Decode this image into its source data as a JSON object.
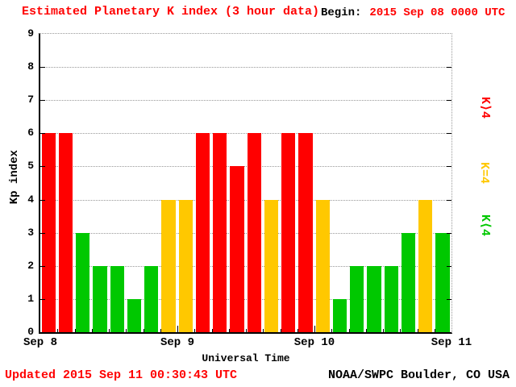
{
  "header": {
    "title": "Estimated Planetary K index (3 hour data)",
    "begin_label": "Begin:",
    "begin_value": "2015 Sep 08 0000 UTC"
  },
  "footer": {
    "updated": "Updated 2015 Sep 11 00:30:43 UTC",
    "source": "NOAA/SWPC Boulder, CO USA"
  },
  "colors": {
    "red": "#ff0000",
    "yellow": "#ffc800",
    "green": "#00c800",
    "grid": "#999999",
    "axis": "#000000",
    "background": "#ffffff"
  },
  "legend": [
    {
      "label": "K⟩4",
      "color": "#ff0000"
    },
    {
      "label": "K=4",
      "color": "#ffc800"
    },
    {
      "label": "K⟨4",
      "color": "#00c800"
    }
  ],
  "chart_data": {
    "type": "bar",
    "title": "Estimated Planetary K index (3 hour data)",
    "xlabel": "Universal Time",
    "ylabel": "Kp index",
    "ylim": [
      0,
      9
    ],
    "y_ticks": [
      0,
      1,
      2,
      3,
      4,
      5,
      6,
      7,
      8,
      9
    ],
    "x_tick_labels": [
      "Sep 8",
      "Sep 9",
      "Sep 10",
      "Sep 11"
    ],
    "days": [
      "Sep 8",
      "Sep 9",
      "Sep 10"
    ],
    "bars_per_day": 8,
    "hours_per_bar": 3,
    "values": [
      6,
      6,
      3,
      2,
      2,
      1,
      2,
      4,
      4,
      6,
      6,
      5,
      6,
      4,
      6,
      6,
      4,
      1,
      2,
      2,
      2,
      3,
      4,
      3
    ],
    "color_rule": {
      "gt4": "#ff0000",
      "eq4": "#ffc800",
      "lt4": "#00c800"
    },
    "grid": "dotted horizontal lines at integer Kp values",
    "legend_position": "right"
  }
}
